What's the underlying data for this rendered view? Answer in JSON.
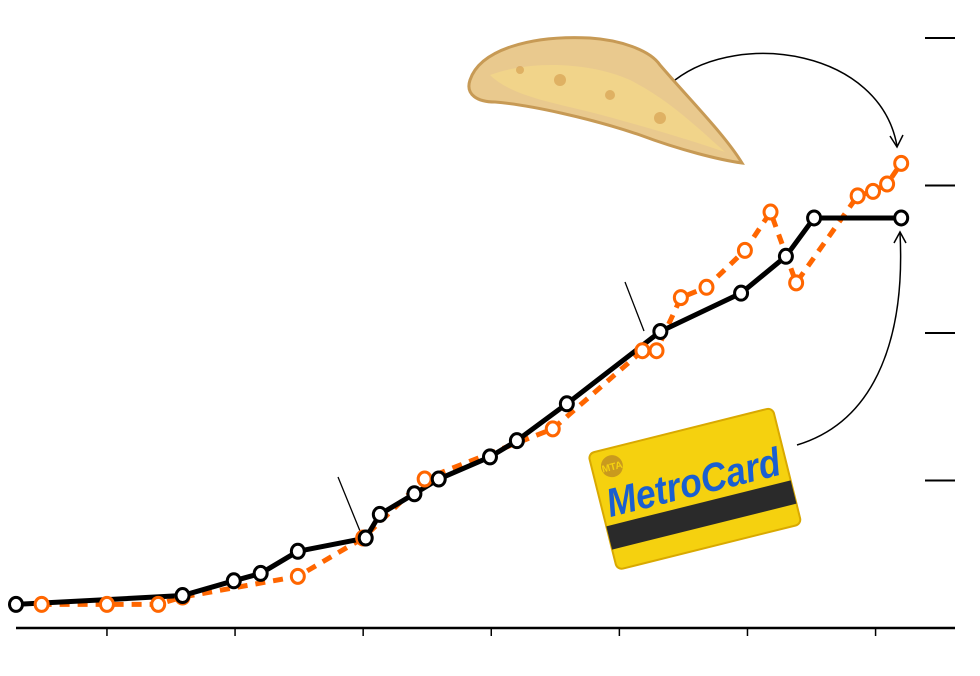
{
  "chart_data": {
    "type": "line",
    "title": "",
    "xlabel": "",
    "ylabel": "",
    "xlim": [
      -0.71,
      6.62
    ],
    "ylim": [
      0,
      4
    ],
    "x_ticks": [
      0,
      1,
      2,
      3,
      4,
      5,
      6
    ],
    "y_ticks": [
      1,
      2,
      3,
      4
    ],
    "y_axis_side": "right",
    "grid": false,
    "legend": "none",
    "series": [
      {
        "color": "#000000",
        "line_style": "solid",
        "marker": "open-circle",
        "points": [
          [
            -0.71,
            0.16
          ],
          [
            0.59,
            0.22
          ],
          [
            0.99,
            0.32
          ],
          [
            1.2,
            0.37
          ],
          [
            1.49,
            0.52
          ],
          [
            2.02,
            0.61
          ],
          [
            2.13,
            0.77
          ],
          [
            2.4,
            0.91
          ],
          [
            2.59,
            1.01
          ],
          [
            2.99,
            1.16
          ],
          [
            3.2,
            1.27
          ],
          [
            3.59,
            1.52
          ],
          [
            4.32,
            2.01
          ],
          [
            4.95,
            2.27
          ],
          [
            5.3,
            2.52
          ],
          [
            5.52,
            2.78
          ],
          [
            6.2,
            2.78
          ]
        ]
      },
      {
        "color": "#ff6600",
        "line_style": "dashed",
        "marker": "open-circle",
        "points": [
          [
            -0.51,
            0.16
          ],
          [
            0.0,
            0.16
          ],
          [
            0.4,
            0.16
          ],
          [
            0.59,
            0.21
          ],
          [
            1.49,
            0.35
          ],
          [
            2.0,
            0.61
          ],
          [
            2.48,
            1.01
          ],
          [
            3.48,
            1.35
          ],
          [
            4.18,
            1.88
          ],
          [
            4.29,
            1.88
          ],
          [
            4.48,
            2.24
          ],
          [
            4.68,
            2.31
          ],
          [
            4.98,
            2.56
          ],
          [
            5.18,
            2.82
          ],
          [
            5.38,
            2.34
          ],
          [
            5.86,
            2.93
          ],
          [
            5.98,
            2.96
          ],
          [
            6.09,
            3.01
          ],
          [
            6.2,
            3.15
          ]
        ]
      }
    ],
    "annotations": {
      "pizza_image": {
        "icon": "pizza-slice",
        "points_to_series": 1
      },
      "metrocard_image": {
        "icon": "metrocard",
        "logo_text": "MetroCard",
        "logo_badge": "MTA",
        "points_to_series": 0
      },
      "marker_lines": [
        2.0,
        4.3
      ]
    }
  }
}
